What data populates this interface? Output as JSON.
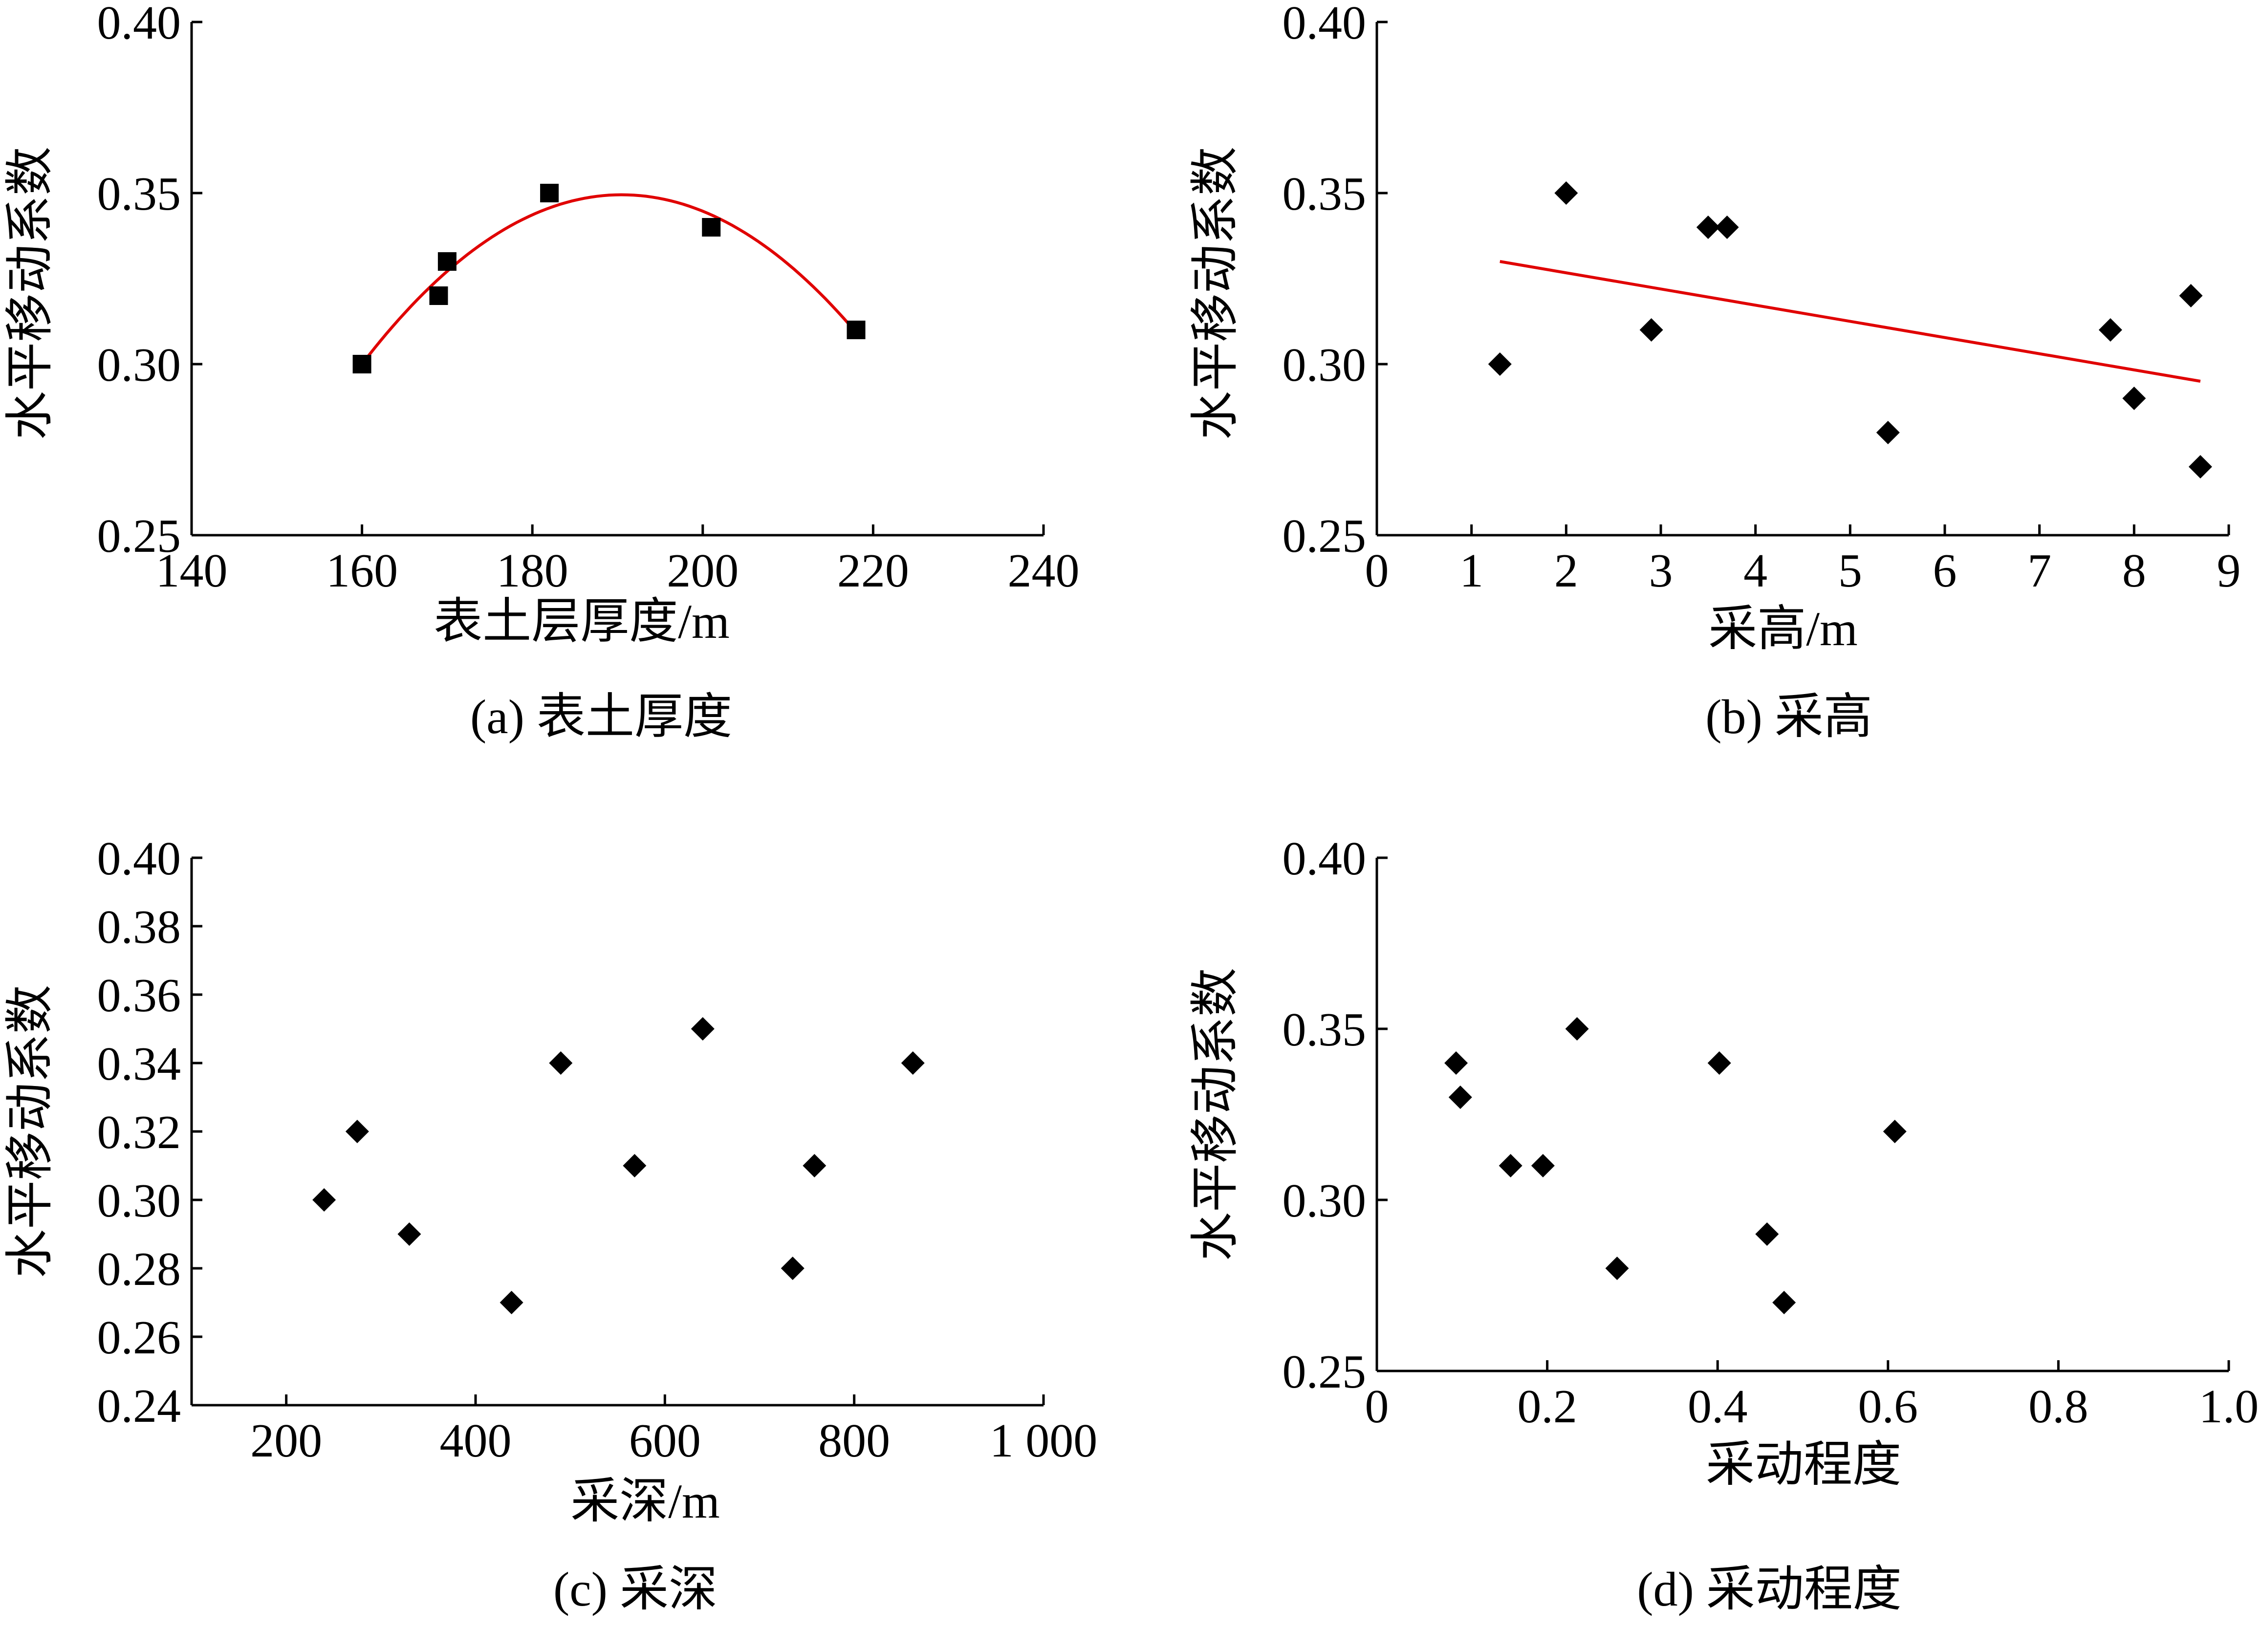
{
  "chart_data": [
    {
      "type": "scatter",
      "caption": "(a)  表土厚度",
      "xlabel": "表土层厚度/m",
      "ylabel": "水平移动系数",
      "xlim": [
        140,
        240
      ],
      "ylim": [
        0.25,
        0.4
      ],
      "xticks": [
        "140",
        "160",
        "180",
        "200",
        "220",
        "240"
      ],
      "yticks": [
        "0.25",
        "0.30",
        "0.35",
        "0.40"
      ],
      "marker": "square",
      "points": [
        {
          "x": 160,
          "y": 0.3
        },
        {
          "x": 169,
          "y": 0.32
        },
        {
          "x": 170,
          "y": 0.33
        },
        {
          "x": 182,
          "y": 0.35
        },
        {
          "x": 201,
          "y": 0.34
        },
        {
          "x": 218,
          "y": 0.31
        }
      ],
      "fit": {
        "kind": "quadratic",
        "color": "#e00000",
        "x_range": [
          160,
          218
        ],
        "vertex": [
          190.5,
          0.3495
        ],
        "start_y": 0.3
      }
    },
    {
      "type": "scatter",
      "caption": "(b)  采高",
      "xlabel": "采高/m",
      "ylabel": "水平移动系数",
      "xlim": [
        0,
        9
      ],
      "ylim": [
        0.25,
        0.4
      ],
      "xticks": [
        "0",
        "1",
        "2",
        "3",
        "4",
        "5",
        "6",
        "7",
        "8",
        "9"
      ],
      "yticks": [
        "0.25",
        "0.30",
        "0.35",
        "0.40"
      ],
      "marker": "diamond",
      "points": [
        {
          "x": 1.3,
          "y": 0.3
        },
        {
          "x": 2.0,
          "y": 0.35
        },
        {
          "x": 2.9,
          "y": 0.31
        },
        {
          "x": 3.5,
          "y": 0.34
        },
        {
          "x": 3.7,
          "y": 0.34
        },
        {
          "x": 5.4,
          "y": 0.28
        },
        {
          "x": 7.75,
          "y": 0.31
        },
        {
          "x": 8.0,
          "y": 0.29
        },
        {
          "x": 8.6,
          "y": 0.32
        },
        {
          "x": 8.7,
          "y": 0.27
        }
      ],
      "fit": {
        "kind": "linear",
        "color": "#e00000",
        "x_range": [
          1.3,
          8.7
        ],
        "y_range": [
          0.33,
          0.295
        ]
      }
    },
    {
      "type": "scatter",
      "caption": "(c)  采深",
      "xlabel": "采深/m",
      "ylabel": "水平移动系数",
      "xlim": [
        100,
        1000
      ],
      "ylim": [
        0.24,
        0.4
      ],
      "xticks": [
        "200",
        "400",
        "600",
        "800",
        "1 000"
      ],
      "xtick_values": [
        200,
        400,
        600,
        800,
        1000
      ],
      "yticks": [
        "0.24",
        "0.26",
        "0.28",
        "0.30",
        "0.32",
        "0.34",
        "0.36",
        "0.38",
        "0.40"
      ],
      "marker": "diamond",
      "points": [
        {
          "x": 240,
          "y": 0.3
        },
        {
          "x": 275,
          "y": 0.32
        },
        {
          "x": 330,
          "y": 0.29
        },
        {
          "x": 438,
          "y": 0.27
        },
        {
          "x": 490,
          "y": 0.34
        },
        {
          "x": 568,
          "y": 0.31
        },
        {
          "x": 640,
          "y": 0.35
        },
        {
          "x": 735,
          "y": 0.28
        },
        {
          "x": 758,
          "y": 0.31
        },
        {
          "x": 862,
          "y": 0.34
        }
      ]
    },
    {
      "type": "scatter",
      "caption": "(d)  采动程度",
      "xlabel": "采动程度",
      "ylabel": "水平移动系数",
      "xlim": [
        0,
        1.0
      ],
      "ylim": [
        0.25,
        0.4
      ],
      "xticks": [
        "0",
        "0.2",
        "0.4",
        "0.6",
        "0.8",
        "1.0"
      ],
      "yticks": [
        "0.25",
        "0.30",
        "0.35",
        "0.40"
      ],
      "marker": "diamond",
      "points": [
        {
          "x": 0.093,
          "y": 0.34
        },
        {
          "x": 0.098,
          "y": 0.33
        },
        {
          "x": 0.157,
          "y": 0.31
        },
        {
          "x": 0.195,
          "y": 0.31
        },
        {
          "x": 0.235,
          "y": 0.35
        },
        {
          "x": 0.282,
          "y": 0.28
        },
        {
          "x": 0.402,
          "y": 0.34
        },
        {
          "x": 0.458,
          "y": 0.29
        },
        {
          "x": 0.478,
          "y": 0.27
        },
        {
          "x": 0.608,
          "y": 0.32
        }
      ]
    }
  ]
}
